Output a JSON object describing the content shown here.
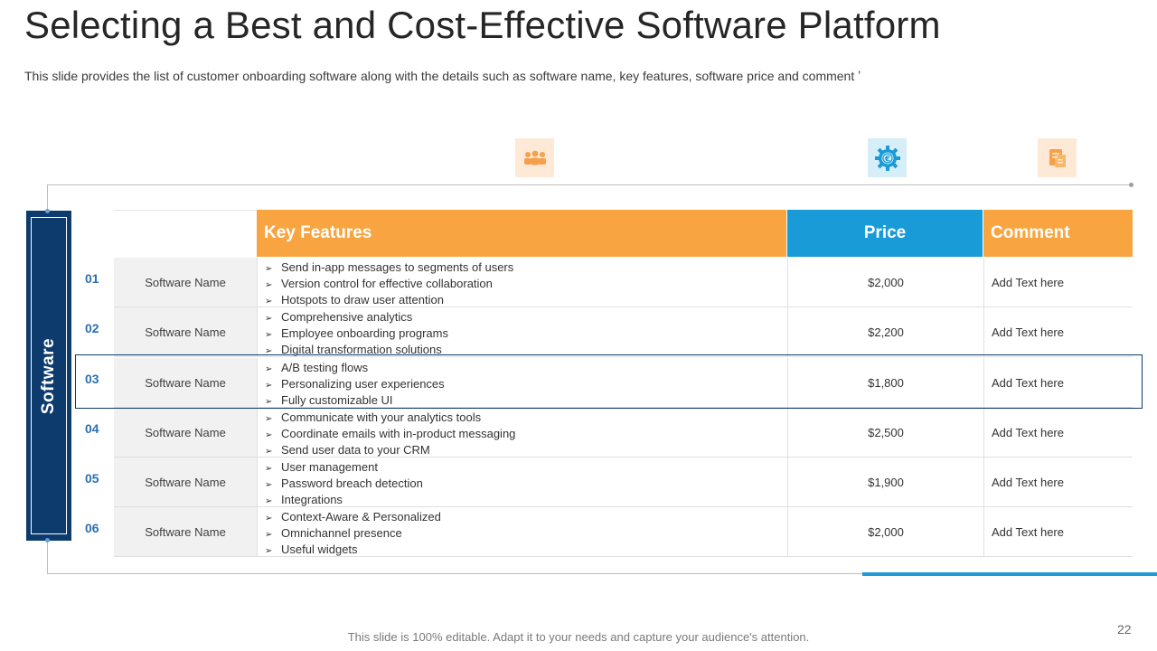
{
  "slide": {
    "title": "Selecting a Best and Cost-Effective Software Platform",
    "subtitle": "This slide provides the list of customer onboarding software along with the details such as software name, key features, software price and comment ʼ",
    "side_label": "Software",
    "footer": "This slide is 100% editable. Adapt it to your needs and capture your audience's attention.",
    "page_number": "22"
  },
  "icons": [
    "people-icon",
    "gear-euro-icon",
    "document-icon"
  ],
  "colors": {
    "orange": "#f8a541",
    "blue": "#189bd7",
    "navy": "#0d3b6e"
  },
  "table": {
    "headers": {
      "features": "Key Features",
      "price": "Price",
      "comment": "Comment"
    },
    "arrow": "➢",
    "rows": [
      {
        "num": "01",
        "name": "Software Name",
        "features": [
          "Send in-app  messages to segments of users",
          "Version control for effective  collaboration",
          "Hotspots to draw user attention"
        ],
        "price": "$2,000",
        "comment": "Add Text here"
      },
      {
        "num": "02",
        "name": "Software Name",
        "features": [
          "Comprehensive  analytics",
          "Employee onboarding programs",
          "Digital transformation  solutions"
        ],
        "price": "$2,200",
        "comment": "Add Text here"
      },
      {
        "num": "03",
        "name": "Software Name",
        "features": [
          "A/B testing flows",
          "Personalizing user experiences",
          "Fully customizable UI"
        ],
        "price": "$1,800",
        "comment": "Add Text here"
      },
      {
        "num": "04",
        "name": "Software Name",
        "features": [
          "Communicate  with your analytics tools",
          "Coordinate  emails with in-product  messaging",
          "Send user data to your CRM"
        ],
        "price": "$2,500",
        "comment": "Add Text here"
      },
      {
        "num": "05",
        "name": "Software Name",
        "features": [
          "User management",
          "Password breach detection",
          "Integrations"
        ],
        "price": "$1,900",
        "comment": "Add Text here"
      },
      {
        "num": "06",
        "name": "Software Name",
        "features": [
          "Context-Aware  & Personalized",
          "Omnichannel  presence",
          "Useful widgets"
        ],
        "price": "$2,000",
        "comment": "Add Text here"
      }
    ]
  }
}
